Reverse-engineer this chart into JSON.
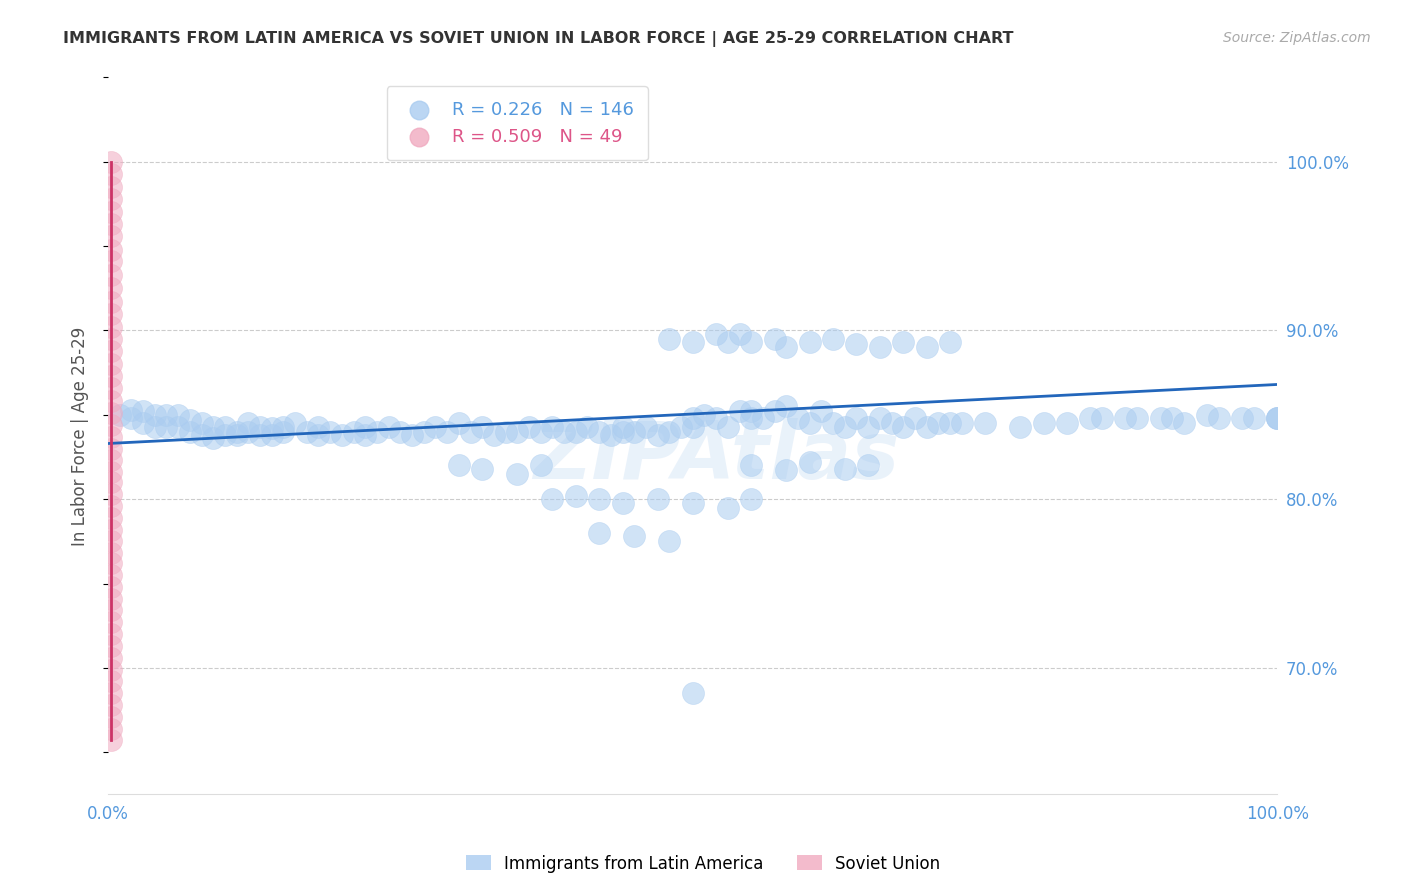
{
  "title": "IMMIGRANTS FROM LATIN AMERICA VS SOVIET UNION IN LABOR FORCE | AGE 25-29 CORRELATION CHART",
  "source": "Source: ZipAtlas.com",
  "ylabel": "In Labor Force | Age 25-29",
  "right_ytick_labels": [
    "70.0%",
    "80.0%",
    "90.0%",
    "100.0%"
  ],
  "right_ytick_values": [
    0.7,
    0.8,
    0.9,
    1.0
  ],
  "xlim": [
    0.0,
    1.0
  ],
  "ylim": [
    0.625,
    1.05
  ],
  "legend_entries": [
    {
      "label": "Immigrants from Latin America",
      "color": "#a8c8f0",
      "R": "0.226",
      "N": "146"
    },
    {
      "label": "Soviet Union",
      "color": "#f0a8c0",
      "R": "0.509",
      "N": "49"
    }
  ],
  "blue_scatter_x": [
    0.01,
    0.02,
    0.02,
    0.03,
    0.03,
    0.04,
    0.04,
    0.05,
    0.05,
    0.06,
    0.06,
    0.07,
    0.07,
    0.08,
    0.08,
    0.09,
    0.09,
    0.1,
    0.1,
    0.11,
    0.11,
    0.12,
    0.12,
    0.13,
    0.13,
    0.14,
    0.14,
    0.15,
    0.15,
    0.16,
    0.17,
    0.18,
    0.18,
    0.19,
    0.2,
    0.21,
    0.22,
    0.22,
    0.23,
    0.24,
    0.25,
    0.26,
    0.27,
    0.28,
    0.29,
    0.3,
    0.31,
    0.32,
    0.33,
    0.34,
    0.35,
    0.36,
    0.37,
    0.38,
    0.39,
    0.4,
    0.41,
    0.42,
    0.43,
    0.44,
    0.44,
    0.45,
    0.46,
    0.47,
    0.48,
    0.49,
    0.5,
    0.5,
    0.51,
    0.52,
    0.53,
    0.54,
    0.55,
    0.55,
    0.56,
    0.57,
    0.58,
    0.59,
    0.6,
    0.61,
    0.62,
    0.63,
    0.64,
    0.65,
    0.66,
    0.67,
    0.68,
    0.69,
    0.7,
    0.71,
    0.72,
    0.73,
    0.75,
    0.78,
    0.8,
    0.82,
    0.84,
    0.85,
    0.87,
    0.88,
    0.9,
    0.91,
    0.92,
    0.94,
    0.95,
    0.97,
    0.98,
    1.0,
    1.0,
    1.0,
    0.48,
    0.5,
    0.52,
    0.53,
    0.54,
    0.55,
    0.57,
    0.58,
    0.6,
    0.62,
    0.64,
    0.66,
    0.68,
    0.7,
    0.72,
    0.55,
    0.58,
    0.6,
    0.63,
    0.65,
    0.38,
    0.4,
    0.42,
    0.44,
    0.47,
    0.5,
    0.53,
    0.55,
    0.42,
    0.45,
    0.48,
    0.3,
    0.32,
    0.35,
    0.37,
    0.5
  ],
  "blue_scatter_y": [
    0.85,
    0.853,
    0.848,
    0.852,
    0.845,
    0.85,
    0.843,
    0.85,
    0.843,
    0.85,
    0.843,
    0.847,
    0.84,
    0.845,
    0.838,
    0.843,
    0.836,
    0.843,
    0.838,
    0.84,
    0.838,
    0.845,
    0.84,
    0.843,
    0.838,
    0.842,
    0.838,
    0.84,
    0.843,
    0.845,
    0.84,
    0.843,
    0.838,
    0.84,
    0.838,
    0.84,
    0.843,
    0.838,
    0.84,
    0.843,
    0.84,
    0.838,
    0.84,
    0.843,
    0.84,
    0.845,
    0.84,
    0.843,
    0.838,
    0.84,
    0.84,
    0.843,
    0.84,
    0.843,
    0.84,
    0.84,
    0.843,
    0.84,
    0.838,
    0.84,
    0.843,
    0.84,
    0.843,
    0.838,
    0.84,
    0.843,
    0.848,
    0.843,
    0.85,
    0.848,
    0.843,
    0.852,
    0.848,
    0.852,
    0.848,
    0.852,
    0.855,
    0.848,
    0.845,
    0.852,
    0.845,
    0.843,
    0.848,
    0.843,
    0.848,
    0.845,
    0.843,
    0.848,
    0.843,
    0.845,
    0.845,
    0.845,
    0.845,
    0.843,
    0.845,
    0.845,
    0.848,
    0.848,
    0.848,
    0.848,
    0.848,
    0.848,
    0.845,
    0.85,
    0.848,
    0.848,
    0.848,
    0.848,
    0.848,
    0.848,
    0.895,
    0.893,
    0.898,
    0.893,
    0.898,
    0.893,
    0.895,
    0.89,
    0.893,
    0.895,
    0.892,
    0.89,
    0.893,
    0.89,
    0.893,
    0.82,
    0.817,
    0.822,
    0.818,
    0.82,
    0.8,
    0.802,
    0.8,
    0.798,
    0.8,
    0.798,
    0.795,
    0.8,
    0.78,
    0.778,
    0.775,
    0.82,
    0.818,
    0.815,
    0.82,
    0.685
  ],
  "pink_scatter_x": [
    0.003,
    0.003,
    0.003,
    0.003,
    0.003,
    0.003,
    0.003,
    0.003,
    0.003,
    0.003,
    0.003,
    0.003,
    0.003,
    0.003,
    0.003,
    0.003,
    0.003,
    0.003,
    0.003,
    0.003,
    0.003,
    0.003,
    0.003,
    0.003,
    0.003,
    0.003,
    0.003,
    0.003,
    0.003,
    0.003,
    0.003,
    0.003,
    0.003,
    0.003,
    0.003,
    0.003,
    0.003,
    0.003,
    0.003,
    0.003,
    0.003,
    0.003,
    0.003,
    0.003,
    0.003,
    0.003,
    0.003,
    0.003,
    0.003
  ],
  "pink_scatter_y": [
    1.0,
    0.993,
    0.985,
    0.978,
    0.97,
    0.963,
    0.956,
    0.948,
    0.941,
    0.933,
    0.925,
    0.917,
    0.91,
    0.902,
    0.895,
    0.888,
    0.88,
    0.873,
    0.866,
    0.858,
    0.851,
    0.844,
    0.837,
    0.83,
    0.823,
    0.816,
    0.81,
    0.803,
    0.796,
    0.789,
    0.782,
    0.775,
    0.768,
    0.762,
    0.755,
    0.748,
    0.741,
    0.734,
    0.727,
    0.72,
    0.713,
    0.706,
    0.699,
    0.692,
    0.685,
    0.678,
    0.671,
    0.664,
    0.657
  ],
  "blue_line_x": [
    0.0,
    1.0
  ],
  "blue_line_y": [
    0.833,
    0.868
  ],
  "pink_line_x": [
    0.003,
    0.003
  ],
  "pink_line_y": [
    0.657,
    1.0
  ],
  "scatter_size": 250,
  "scatter_alpha": 0.55,
  "blue_color": "#aaccf0",
  "pink_color": "#f0aac0",
  "blue_line_color": "#2266bb",
  "pink_line_color": "#cc3366",
  "grid_color": "#cccccc",
  "title_color": "#333333",
  "right_axis_color": "#5599dd",
  "watermark": "ZIPAtlas",
  "background_color": "#ffffff"
}
